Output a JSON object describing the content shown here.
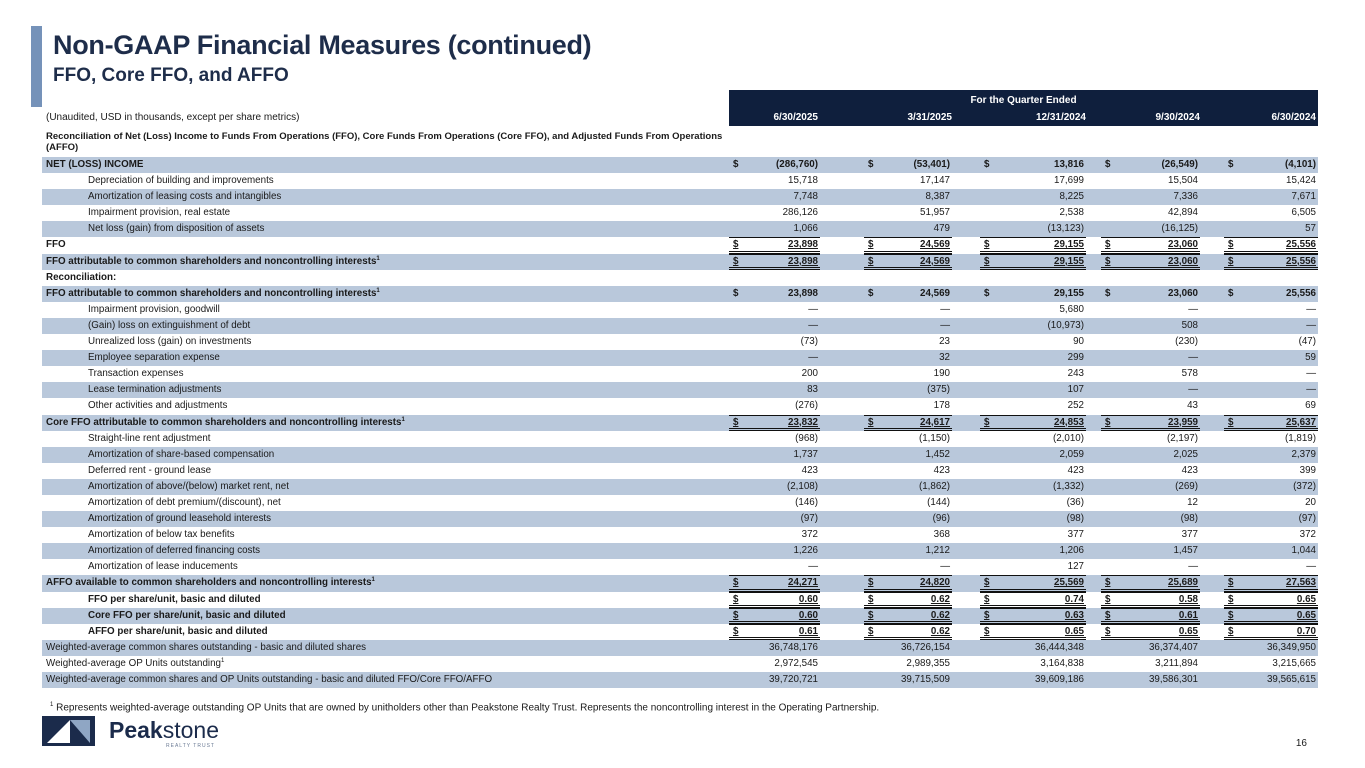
{
  "header": {
    "title": "Non-GAAP Financial Measures (continued)",
    "subtitle": "FFO, Core FFO, and AFFO"
  },
  "table": {
    "note": "(Unaudited, USD in thousands, except per share metrics)",
    "period_header": "For the Quarter Ended",
    "columns": [
      "6/30/2025",
      "3/31/2025",
      "12/31/2024",
      "9/30/2024",
      "6/30/2024"
    ],
    "section_title": "Reconciliation of Net (Loss) Income to Funds From Operations (FFO), Core Funds From Operations (Core FFO), and  Adjusted Funds From Operations (AFFO)",
    "rows": [
      {
        "label": "NET (LOSS) INCOME",
        "kind": "bold-dollar",
        "values": [
          "(286,760)",
          "(53,401)",
          "13,816",
          "(26,549)",
          "(4,101)"
        ]
      },
      {
        "label": "Depreciation of building and improvements",
        "kind": "item",
        "values": [
          "15,718",
          "17,147",
          "17,699",
          "15,504",
          "15,424"
        ]
      },
      {
        "label": "Amortization of leasing costs and intangibles",
        "kind": "item",
        "values": [
          "7,748",
          "8,387",
          "8,225",
          "7,336",
          "7,671"
        ]
      },
      {
        "label": "Impairment provision, real estate",
        "kind": "item",
        "values": [
          "286,126",
          "51,957",
          "2,538",
          "42,894",
          "6,505"
        ]
      },
      {
        "label": "Net loss (gain) from disposition of assets",
        "kind": "item",
        "values": [
          "1,066",
          "479",
          "(13,123)",
          "(16,125)",
          "57"
        ]
      },
      {
        "label": "FFO",
        "kind": "subtotal",
        "values": [
          "23,898",
          "24,569",
          "29,155",
          "23,060",
          "25,556"
        ]
      },
      {
        "label": "FFO attributable to common shareholders and noncontrolling interests",
        "footnote": "1",
        "kind": "subtotal",
        "values": [
          "23,898",
          "24,569",
          "29,155",
          "23,060",
          "25,556"
        ]
      },
      {
        "label": "Reconciliation:",
        "kind": "section",
        "values": [
          "",
          "",
          "",
          "",
          ""
        ]
      },
      {
        "label": "FFO attributable to common shareholders and noncontrolling interests",
        "footnote": "1",
        "kind": "bold-dollar",
        "values": [
          "23,898",
          "24,569",
          "29,155",
          "23,060",
          "25,556"
        ]
      },
      {
        "label": "Impairment provision, goodwill",
        "kind": "item",
        "values": [
          "—",
          "—",
          "5,680",
          "—",
          "—"
        ]
      },
      {
        "label": "(Gain) loss on extinguishment of debt",
        "kind": "item",
        "values": [
          "—",
          "—",
          "(10,973)",
          "508",
          "—"
        ]
      },
      {
        "label": "Unrealized loss (gain) on investments",
        "kind": "item",
        "values": [
          "(73)",
          "23",
          "90",
          "(230)",
          "(47)"
        ]
      },
      {
        "label": "Employee separation expense",
        "kind": "item",
        "values": [
          "—",
          "32",
          "299",
          "—",
          "59"
        ]
      },
      {
        "label": "Transaction expenses",
        "kind": "item",
        "values": [
          "200",
          "190",
          "243",
          "578",
          "—"
        ]
      },
      {
        "label": "Lease termination adjustments",
        "kind": "item",
        "values": [
          "83",
          "(375)",
          "107",
          "—",
          "—"
        ]
      },
      {
        "label": "Other activities and adjustments",
        "kind": "item",
        "values": [
          "(276)",
          "178",
          "252",
          "43",
          "69"
        ]
      },
      {
        "label": "Core FFO attributable to common shareholders and noncontrolling interests",
        "footnote": "1",
        "kind": "subtotal",
        "values": [
          "23,832",
          "24,617",
          "24,853",
          "23,959",
          "25,637"
        ]
      },
      {
        "label": "Straight-line rent adjustment",
        "kind": "item",
        "values": [
          "(968)",
          "(1,150)",
          "(2,010)",
          "(2,197)",
          "(1,819)"
        ]
      },
      {
        "label": "Amortization of share-based compensation",
        "kind": "item",
        "values": [
          "1,737",
          "1,452",
          "2,059",
          "2,025",
          "2,379"
        ]
      },
      {
        "label": "Deferred rent - ground lease",
        "kind": "item",
        "values": [
          "423",
          "423",
          "423",
          "423",
          "399"
        ]
      },
      {
        "label": "Amortization of above/(below) market rent, net",
        "kind": "item",
        "values": [
          "(2,108)",
          "(1,862)",
          "(1,332)",
          "(269)",
          "(372)"
        ]
      },
      {
        "label": "Amortization of debt premium/(discount), net",
        "kind": "item",
        "values": [
          "(146)",
          "(144)",
          "(36)",
          "12",
          "20"
        ]
      },
      {
        "label": "Amortization of ground leasehold interests",
        "kind": "item",
        "values": [
          "(97)",
          "(96)",
          "(98)",
          "(98)",
          "(97)"
        ]
      },
      {
        "label": "Amortization of below tax benefits",
        "kind": "item",
        "values": [
          "372",
          "368",
          "377",
          "377",
          "372"
        ]
      },
      {
        "label": "Amortization of deferred financing costs",
        "kind": "item",
        "values": [
          "1,226",
          "1,212",
          "1,206",
          "1,457",
          "1,044"
        ]
      },
      {
        "label": "Amortization of lease inducements",
        "kind": "item",
        "values": [
          "—",
          "—",
          "127",
          "—",
          "—"
        ]
      },
      {
        "label": "AFFO available to common shareholders and noncontrolling interests",
        "footnote": "1",
        "kind": "subtotal",
        "values": [
          "24,271",
          "24,820",
          "25,569",
          "25,689",
          "27,563"
        ]
      },
      {
        "label": "FFO per share/unit, basic and diluted",
        "kind": "per-share",
        "values": [
          "0.60",
          "0.62",
          "0.74",
          "0.58",
          "0.65"
        ]
      },
      {
        "label": "Core FFO per share/unit, basic and diluted",
        "kind": "per-share",
        "values": [
          "0.60",
          "0.62",
          "0.63",
          "0.61",
          "0.65"
        ]
      },
      {
        "label": "AFFO per share/unit, basic and diluted",
        "kind": "per-share",
        "values": [
          "0.61",
          "0.62",
          "0.65",
          "0.65",
          "0.70"
        ]
      },
      {
        "label": "Weighted-average common shares outstanding - basic and diluted shares",
        "kind": "count",
        "values": [
          "36,748,176",
          "36,726,154",
          "36,444,348",
          "36,374,407",
          "36,349,950"
        ]
      },
      {
        "label": "Weighted-average OP Units outstanding",
        "footnote": "1",
        "kind": "count",
        "values": [
          "2,972,545",
          "2,989,355",
          "3,164,838",
          "3,211,894",
          "3,215,665"
        ]
      },
      {
        "label": "Weighted-average common shares and OP Units outstanding - basic and diluted FFO/Core FFO/AFFO",
        "kind": "count",
        "values": [
          "39,720,721",
          "39,715,509",
          "39,609,186",
          "39,586,301",
          "39,565,615"
        ]
      }
    ],
    "currency_symbol": "$"
  },
  "footnote": {
    "marker": "1",
    "text": "Represents weighted-average outstanding OP Units that are owned by unitholders other than Peakstone Realty Trust. Represents the noncontrolling interest in the Operating Partnership."
  },
  "logo": {
    "name_bold": "Peak",
    "name_light": "stone",
    "tagline": "REALTY TRUST"
  },
  "page_number": "16",
  "colors": {
    "navy": "#0f1f3d",
    "row_shade": "#b9c8db",
    "accent_bar": "#7592b9"
  }
}
